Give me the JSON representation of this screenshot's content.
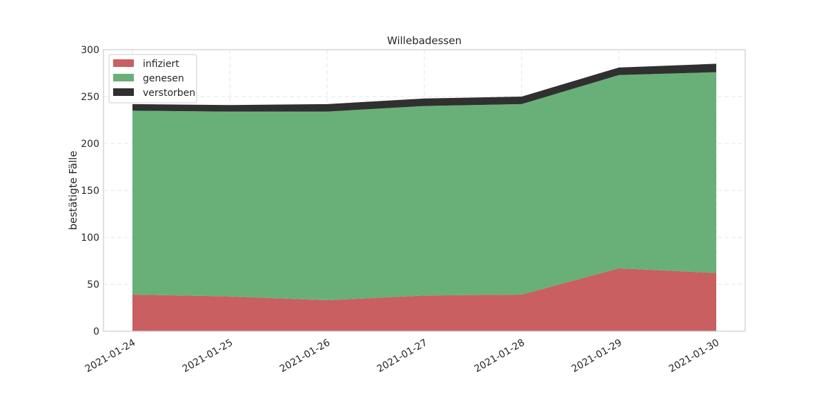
{
  "chart_data": {
    "type": "area",
    "stacked": true,
    "title": "Willebadessen",
    "xlabel": "",
    "ylabel": "bestätigte Fälle",
    "x": [
      "2021-01-24",
      "2021-01-25",
      "2021-01-26",
      "2021-01-27",
      "2021-01-28",
      "2021-01-29",
      "2021-01-30"
    ],
    "ylim": [
      0,
      300
    ],
    "yticks": [
      0,
      50,
      100,
      150,
      200,
      250,
      300
    ],
    "grid": true,
    "legend_position": "top-left",
    "series": [
      {
        "name": "infiziert",
        "color": "#c95f61",
        "values": [
          39,
          37,
          33,
          38,
          39,
          67,
          62
        ]
      },
      {
        "name": "genesen",
        "color": "#68b077",
        "values": [
          196,
          197,
          201,
          202,
          203,
          206,
          214
        ]
      },
      {
        "name": "verstorben",
        "color": "#303030",
        "values": [
          7,
          7,
          8,
          8,
          8,
          8,
          9
        ]
      }
    ]
  }
}
